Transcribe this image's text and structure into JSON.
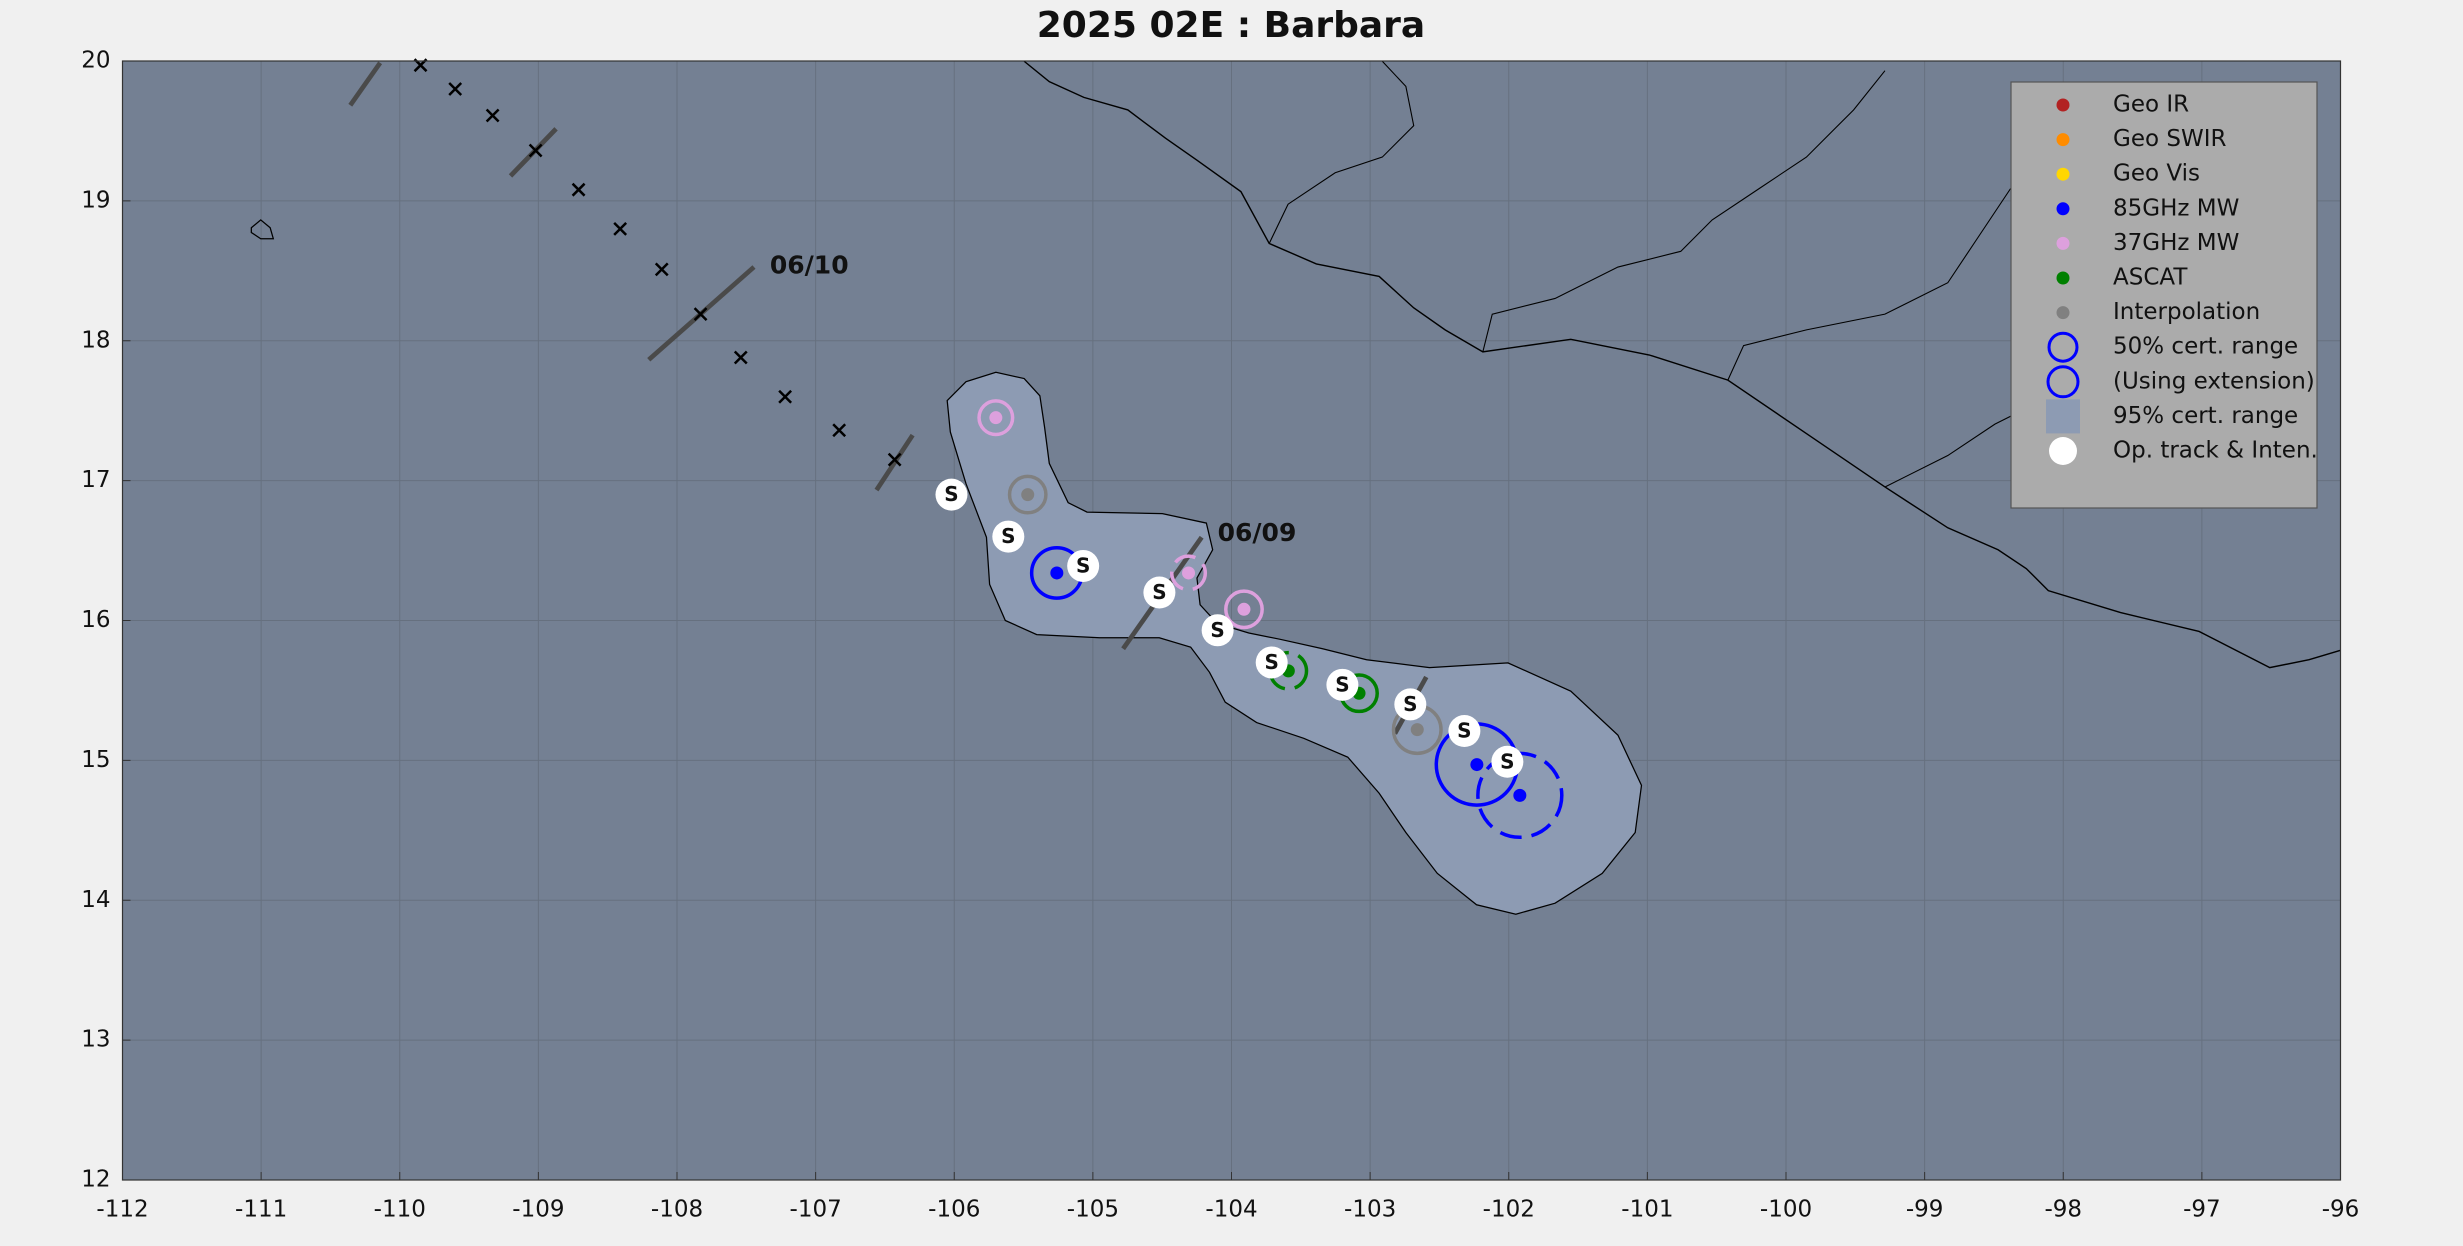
{
  "chart_data": {
    "type": "scatter",
    "title": "2025  02E :  Barbara",
    "xlim": [
      -112,
      -96
    ],
    "ylim": [
      12,
      20
    ],
    "xticks": [
      -112,
      -111,
      -110,
      -109,
      -108,
      -107,
      -106,
      -105,
      -104,
      -103,
      -102,
      -101,
      -100,
      -99,
      -98,
      -97,
      -96
    ],
    "yticks": [
      12,
      13,
      14,
      15,
      16,
      17,
      18,
      19,
      20
    ],
    "grid": true,
    "legend": "upper right",
    "series": [
      {
        "name": "Geo IR",
        "color": "#b22222",
        "x": [],
        "values": [],
        "cert_r": [],
        "extension": []
      },
      {
        "name": "Geo SWIR",
        "color": "#ff8c00",
        "x": [],
        "values": [],
        "cert_r": [],
        "extension": []
      },
      {
        "name": "Geo Vis",
        "color": "#ffd700",
        "x": [],
        "values": [],
        "cert_r": [],
        "extension": []
      },
      {
        "name": "85GHz MW",
        "color": "#0000ff",
        "x": [
          -105.26,
          -102.23,
          -101.92
        ],
        "values": [
          16.34,
          14.97,
          14.75
        ],
        "cert_r": [
          0.18,
          0.29,
          0.3
        ],
        "extension": [
          false,
          false,
          true
        ]
      },
      {
        "name": "37GHz MW",
        "color": "#dda0dd",
        "x": [
          -105.7,
          -104.31,
          -103.91
        ],
        "values": [
          17.45,
          16.34,
          16.08
        ],
        "cert_r": [
          0.12,
          0.12,
          0.13
        ],
        "extension": [
          false,
          true,
          false
        ]
      },
      {
        "name": "ASCAT",
        "color": "#008000",
        "x": [
          -103.59,
          -103.08
        ],
        "values": [
          15.64,
          15.48
        ],
        "cert_r": [
          0.13,
          0.13
        ],
        "extension": [
          true,
          false
        ]
      },
      {
        "name": "Interpolation",
        "color": "#808080",
        "x": [
          -105.47,
          -102.66
        ],
        "values": [
          16.9,
          15.22
        ],
        "cert_r": [
          0.13,
          0.17
        ],
        "extension": [
          false,
          false
        ]
      },
      {
        "name": "Op. track & Inten.",
        "color": "#ffffff",
        "x": [
          -106.02,
          -105.61,
          -105.07,
          -104.52,
          -104.1,
          -103.71,
          -103.2,
          -102.71,
          -102.32,
          -102.01
        ],
        "values": [
          16.9,
          16.6,
          16.39,
          16.2,
          15.93,
          15.7,
          15.54,
          15.4,
          15.21,
          14.99
        ],
        "point_labels": [
          "S",
          "S",
          "S",
          "S",
          "S",
          "S",
          "S",
          "S",
          "S",
          "S"
        ]
      }
    ],
    "cert_legend": [
      "50% cert. range",
      "(Using extension)",
      "95% cert. range"
    ],
    "cert_legend_colors": [
      "#0000ff",
      "#0000ff",
      "#8d9bb3"
    ],
    "forecast_track": {
      "x": [
        -109.85,
        -109.6,
        -109.33,
        -109.02,
        -108.71,
        -108.41,
        -108.11,
        -107.83,
        -107.54,
        -107.22,
        -106.83,
        -106.43
      ],
      "values": [
        19.97,
        19.8,
        19.61,
        19.36,
        19.08,
        18.8,
        18.51,
        18.19,
        17.88,
        17.6,
        17.36,
        17.15
      ]
    },
    "annotations": [
      {
        "text": "06/10",
        "x": -107.33,
        "y": 18.53
      },
      {
        "text": "06/09",
        "x": -104.1,
        "y": 16.62
      }
    ]
  }
}
